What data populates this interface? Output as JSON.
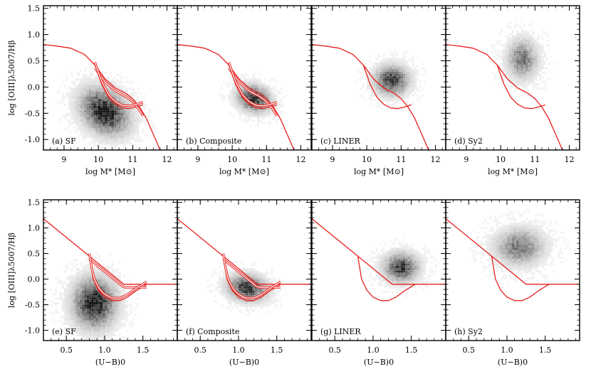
{
  "figure": {
    "rows": [
      {
        "xlabel": "log M* [M⊙]",
        "ylabel": "log [OIII]λ5007/Hβ",
        "xlim": [
          8.4,
          12.3
        ],
        "ylim": [
          -1.2,
          1.55
        ],
        "xticks": [
          "9",
          "10",
          "11",
          "12"
        ],
        "yticks": [
          "1.5",
          "1.0",
          "0.5",
          "0.0",
          "-0.5",
          "-1.0"
        ]
      },
      {
        "xlabel": "(U−B)0",
        "ylabel": "log [OIII]λ5007/Hβ",
        "xlim": [
          0.2,
          1.95
        ],
        "ylim": [
          -1.2,
          1.55
        ],
        "xticks": [
          "0.5",
          "1.0",
          "1.5"
        ],
        "yticks": [
          "1.5",
          "1.0",
          "0.5",
          "0.0",
          "-0.5",
          "-1.0"
        ]
      }
    ],
    "panel_labels": [
      [
        "(a) SF",
        "(b) Composite",
        "(c) LINER",
        "(d) Sy2"
      ],
      [
        "(e) SF",
        "(f) Composite",
        "(g) LINER",
        "(h) Sy2"
      ]
    ],
    "colors": {
      "curve": "#e8211e",
      "density": "#000000",
      "axes": "#000000"
    }
  },
  "chart_data": [
    {
      "type": "heatmap",
      "panels": [
        {
          "label": "(a) SF",
          "density_center": [
            10.15,
            -0.45
          ],
          "density_spread": [
            0.55,
            0.33
          ],
          "density_tilt": -0.45,
          "peak_fraction": 1.0
        },
        {
          "label": "(b) Composite",
          "density_center": [
            10.6,
            -0.2
          ],
          "density_spread": [
            0.38,
            0.2
          ],
          "density_tilt": -0.3,
          "peak_fraction": 0.85
        },
        {
          "label": "(c) LINER",
          "density_center": [
            10.7,
            0.15
          ],
          "density_spread": [
            0.4,
            0.22
          ],
          "density_tilt": 0.0,
          "peak_fraction": 0.8
        },
        {
          "label": "(d) Sy2",
          "density_center": [
            10.6,
            0.55
          ],
          "density_spread": [
            0.35,
            0.3
          ],
          "density_tilt": 0.0,
          "peak_fraction": 0.55
        }
      ],
      "curves": {
        "dividing_line": {
          "x": [
            8.4,
            8.8,
            9.2,
            9.6,
            9.9,
            10.2,
            10.5,
            10.8,
            11.0,
            11.2,
            11.4,
            11.6,
            11.8
          ],
          "y": [
            0.81,
            0.78,
            0.74,
            0.62,
            0.42,
            0.15,
            -0.02,
            -0.12,
            -0.22,
            -0.38,
            -0.6,
            -0.9,
            -1.2
          ]
        },
        "lower_curve": {
          "x": [
            9.9,
            10.1,
            10.3,
            10.5,
            10.7,
            10.9,
            11.1,
            11.3
          ],
          "y": [
            0.42,
            0.05,
            -0.2,
            -0.33,
            -0.4,
            -0.41,
            -0.38,
            -0.34
          ]
        }
      }
    },
    {
      "type": "heatmap",
      "panels": [
        {
          "label": "(e) SF",
          "density_center": [
            0.85,
            -0.45
          ],
          "density_spread": [
            0.22,
            0.38
          ],
          "density_tilt": 0.0,
          "peak_fraction": 1.0
        },
        {
          "label": "(f) Composite",
          "density_center": [
            1.1,
            -0.15
          ],
          "density_spread": [
            0.2,
            0.2
          ],
          "density_tilt": -0.2,
          "peak_fraction": 0.85
        },
        {
          "label": "(g) LINER",
          "density_center": [
            1.35,
            0.25
          ],
          "density_spread": [
            0.18,
            0.22
          ],
          "density_tilt": 0.0,
          "peak_fraction": 0.8
        },
        {
          "label": "(h) Sy2",
          "density_center": [
            1.15,
            0.65
          ],
          "density_spread": [
            0.25,
            0.28
          ],
          "density_tilt": 0.0,
          "peak_fraction": 0.55
        }
      ],
      "curves": {
        "dividing_line": {
          "x": [
            0.2,
            0.8,
            1.25,
            1.95
          ],
          "y": [
            1.18,
            0.45,
            -0.1,
            -0.1
          ]
        },
        "lower_curve": {
          "x": [
            0.8,
            0.85,
            0.92,
            1.0,
            1.1,
            1.2,
            1.3,
            1.42,
            1.55
          ],
          "y": [
            0.45,
            0.0,
            -0.22,
            -0.35,
            -0.42,
            -0.42,
            -0.35,
            -0.22,
            -0.1
          ]
        }
      }
    }
  ]
}
